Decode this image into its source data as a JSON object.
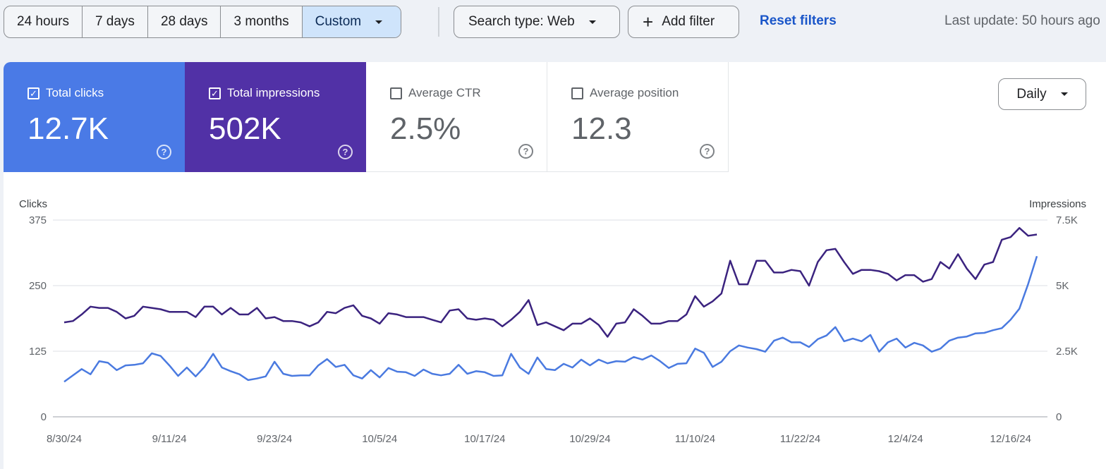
{
  "toolbar": {
    "ranges": [
      "24 hours",
      "7 days",
      "28 days",
      "3 months",
      "Custom"
    ],
    "search_type": "Search type: Web",
    "add_filter": "Add filter",
    "reset": "Reset filters",
    "last_update": "Last update: 50 hours ago"
  },
  "metrics": [
    {
      "label": "Total clicks",
      "value": "12.7K",
      "checked": true,
      "color": "#4a7ae6"
    },
    {
      "label": "Total impressions",
      "value": "502K",
      "checked": true,
      "color": "#5131a6"
    },
    {
      "label": "Average CTR",
      "value": "2.5%",
      "checked": false
    },
    {
      "label": "Average position",
      "value": "12.3",
      "checked": false
    }
  ],
  "granularity": "Daily",
  "chart_data": {
    "type": "line",
    "ylabel_left": "Clicks",
    "ylabel_right": "Impressions",
    "yticks_left": [
      "0",
      "125",
      "250",
      "375"
    ],
    "ylim_left": [
      0,
      375
    ],
    "yticks_right": [
      "0",
      "2.5K",
      "5K",
      "7.5K"
    ],
    "ylim_right": [
      0,
      7500
    ],
    "xticks": [
      "8/30/24",
      "9/11/24",
      "9/23/24",
      "10/5/24",
      "10/17/24",
      "10/29/24",
      "11/10/24",
      "11/22/24",
      "12/4/24",
      "12/16/24"
    ],
    "x_start": "8/30/24",
    "x_end": "12/19/24",
    "grid": true,
    "series": [
      {
        "name": "Clicks",
        "axis": "left",
        "color": "#4a7ae0",
        "values": [
          67,
          79,
          91,
          81,
          106,
          103,
          89,
          98,
          99,
          102,
          121,
          116,
          98,
          78,
          94,
          77,
          95,
          120,
          94,
          87,
          81,
          70,
          73,
          77,
          105,
          82,
          78,
          79,
          79,
          98,
          110,
          95,
          99,
          79,
          73,
          89,
          75,
          93,
          86,
          85,
          78,
          90,
          82,
          79,
          82,
          99,
          82,
          87,
          85,
          78,
          79,
          120,
          94,
          82,
          113,
          91,
          89,
          101,
          94,
          109,
          98,
          109,
          102,
          106,
          105,
          114,
          109,
          117,
          106,
          93,
          101,
          102,
          130,
          122,
          95,
          105,
          125,
          136,
          132,
          129,
          124,
          145,
          151,
          142,
          142,
          133,
          148,
          155,
          171,
          144,
          149,
          144,
          156,
          124,
          142,
          149,
          132,
          141,
          136,
          124,
          130,
          145,
          151,
          153,
          159,
          160,
          165,
          169,
          185,
          206,
          253,
          306
        ]
      },
      {
        "name": "Impressions",
        "axis": "right",
        "color": "#3b237f",
        "values": [
          3600,
          3650,
          3900,
          4200,
          4150,
          4150,
          4000,
          3750,
          3850,
          4200,
          4150,
          4100,
          4000,
          4000,
          4000,
          3800,
          4200,
          4200,
          3900,
          4150,
          3900,
          3900,
          4150,
          3750,
          3800,
          3650,
          3650,
          3600,
          3450,
          3600,
          4000,
          3950,
          4150,
          4250,
          3850,
          3750,
          3550,
          3950,
          3900,
          3800,
          3800,
          3800,
          3700,
          3600,
          4050,
          4100,
          3750,
          3700,
          3750,
          3700,
          3450,
          3700,
          4000,
          4450,
          3500,
          3600,
          3450,
          3300,
          3550,
          3550,
          3750,
          3500,
          3050,
          3550,
          3600,
          4100,
          3850,
          3550,
          3550,
          3650,
          3650,
          3900,
          4600,
          4200,
          4400,
          4700,
          5950,
          5050,
          5050,
          5950,
          5950,
          5500,
          5500,
          5600,
          5550,
          5000,
          5900,
          6350,
          6400,
          5900,
          5450,
          5600,
          5600,
          5550,
          5450,
          5200,
          5400,
          5400,
          5150,
          5250,
          5900,
          5650,
          6200,
          5650,
          5250,
          5800,
          5900,
          6750,
          6850,
          7200,
          6900,
          6950
        ]
      }
    ]
  }
}
